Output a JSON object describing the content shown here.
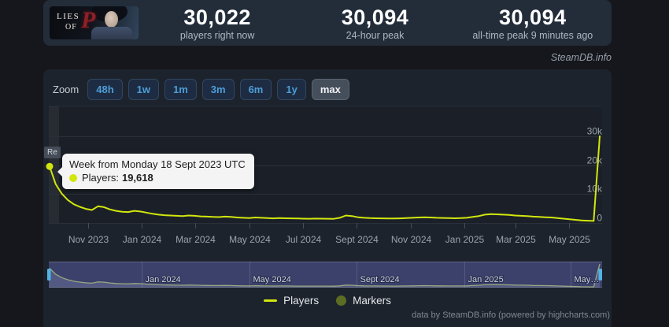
{
  "header": {
    "capsule": {
      "game": "Lies of P",
      "line1": "LIES",
      "line2": "OF",
      "letter": "P"
    },
    "stats": [
      {
        "value": "30,022",
        "label": "players right now"
      },
      {
        "value": "30,094",
        "label": "24-hour peak"
      },
      {
        "value": "30,094",
        "label": "all-time peak 9 minutes ago"
      }
    ]
  },
  "watermark": "SteamDB.info",
  "toolbar": {
    "zoom_label": "Zoom",
    "ranges": [
      "48h",
      "1w",
      "1m",
      "3m",
      "6m",
      "1y",
      "max"
    ],
    "active_range": "max"
  },
  "tooltip": {
    "title": "Week from Monday 18 Sept 2023 UTC",
    "series_label": "Players:",
    "value": "19,618"
  },
  "flag_label": "Re",
  "legend": [
    {
      "name": "Players",
      "glyph": "line"
    },
    {
      "name": "Markers",
      "glyph": "circle"
    }
  ],
  "footer": "data by SteamDB.info (powered by highcharts.com)",
  "colors": {
    "accent_line": "#d2e60e",
    "markers_series": "#5c6c24",
    "link_blue": "#4e9dd8",
    "nav_mask": "rgba(88,96,186,0.42)",
    "nav_handle": "#52b3e6",
    "grid": "#2a313a",
    "axis_label": "#9aa3ac"
  },
  "chart_data": {
    "type": "line",
    "title": "Lies of P concurrent players (weekly, all time)",
    "series": [
      {
        "name": "Players",
        "color": "#d2e60e",
        "values": [
          19618,
          13500,
          10200,
          8000,
          6500,
          5600,
          4900,
          4500,
          5800,
          5500,
          4700,
          4200,
          3900,
          3800,
          4200,
          4000,
          3600,
          3200,
          2900,
          2700,
          2600,
          2500,
          2400,
          2600,
          2500,
          2300,
          2200,
          2100,
          2050,
          2200,
          2100,
          1900,
          1800,
          1700,
          1900,
          1800,
          1700,
          1600,
          1700,
          1650,
          1600,
          1550,
          1500,
          1480,
          1520,
          1500,
          1480,
          1460,
          1800,
          2600,
          2400,
          2000,
          1800,
          1700,
          1650,
          1600,
          1580,
          1560,
          1600,
          1700,
          1800,
          1900,
          2000,
          1900,
          1800,
          1750,
          1700,
          1650,
          1700,
          1800,
          2100,
          2400,
          2900,
          3100,
          3000,
          2900,
          2800,
          2600,
          2500,
          2400,
          2200,
          2100,
          2000,
          1900,
          1700,
          1500,
          1300,
          1100,
          900,
          800,
          700,
          30094
        ]
      }
    ],
    "highlight_point": {
      "index": 0,
      "value": 19618,
      "label": "19,618"
    },
    "ylim": [
      0,
      38500
    ],
    "y_ticks": [
      {
        "label": "0",
        "value": 0
      },
      {
        "label": "10k",
        "value": 10000
      },
      {
        "label": "20k",
        "value": 20000
      },
      {
        "label": "30k",
        "value": 30000
      }
    ],
    "x_ticks": [
      {
        "label": "Nov 2023",
        "pos": 0.07
      },
      {
        "label": "Jan 2024",
        "pos": 0.167
      },
      {
        "label": "Mar 2024",
        "pos": 0.265
      },
      {
        "label": "May 2024",
        "pos": 0.363
      },
      {
        "label": "Jul 2024",
        "pos": 0.461
      },
      {
        "label": "Sept 2024",
        "pos": 0.558
      },
      {
        "label": "Nov 2024",
        "pos": 0.657
      },
      {
        "label": "Jan 2025",
        "pos": 0.754
      },
      {
        "label": "Mar 2025",
        "pos": 0.847
      },
      {
        "label": "May 2025",
        "pos": 0.944
      }
    ],
    "navigator_x_ticks": [
      {
        "label": "Jan 2024",
        "pos": 0.167
      },
      {
        "label": "May 2024",
        "pos": 0.363
      },
      {
        "label": "Sept 2024",
        "pos": 0.558
      },
      {
        "label": "Jan 2025",
        "pos": 0.754
      },
      {
        "label": "May…",
        "pos": 0.947
      }
    ],
    "grid": true,
    "legend_position": "bottom"
  }
}
